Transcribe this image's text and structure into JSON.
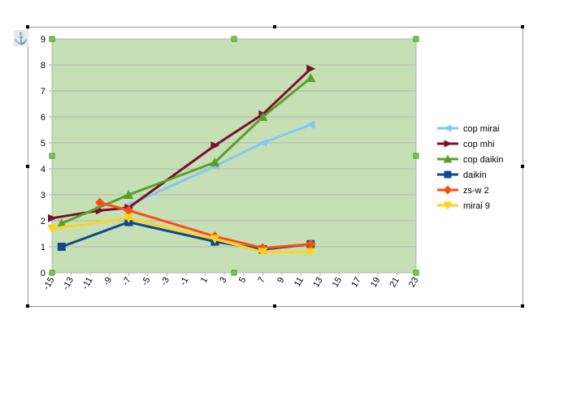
{
  "chart_data": {
    "type": "line",
    "title": "",
    "xlabel": "",
    "ylabel": "",
    "xlim": [
      -15,
      23
    ],
    "ylim": [
      0,
      9
    ],
    "x_ticks": [
      "-15",
      "-13",
      "-11",
      "-9",
      "-7",
      "-5",
      "-3",
      "-1",
      "1",
      "3",
      "5",
      "7",
      "9",
      "11",
      "13",
      "15",
      "17",
      "19",
      "21",
      "23"
    ],
    "y_ticks": [
      "0",
      "1",
      "2",
      "3",
      "4",
      "5",
      "6",
      "7",
      "8",
      "9"
    ],
    "grid": "horizontal",
    "legend_position": "right",
    "plot_background": "#c5e0b4",
    "series": [
      {
        "name": "cop mirai",
        "color": "#86c6f4",
        "marker": "arrow-left",
        "points": [
          [
            -7,
            2.6
          ],
          [
            2,
            4.1
          ],
          [
            7,
            5.0
          ],
          [
            12,
            5.7
          ]
        ]
      },
      {
        "name": "cop mhi",
        "color": "#7a0f2a",
        "marker": "arrow-right",
        "points": [
          [
            -15,
            2.1
          ],
          [
            -10,
            2.4
          ],
          [
            -7,
            2.5
          ],
          [
            2,
            4.9
          ],
          [
            7,
            6.1
          ],
          [
            12,
            7.85
          ]
        ]
      },
      {
        "name": "cop daikin",
        "color": "#5c9e2c",
        "marker": "triangle-up",
        "points": [
          [
            -14,
            1.9
          ],
          [
            -7,
            3.0
          ],
          [
            2,
            4.25
          ],
          [
            7,
            6.0
          ],
          [
            12,
            7.5
          ]
        ]
      },
      {
        "name": "daikin",
        "color": "#11488c",
        "marker": "square",
        "points": [
          [
            -14,
            1.0
          ],
          [
            -7,
            1.95
          ],
          [
            2,
            1.2
          ],
          [
            7,
            0.9
          ],
          [
            12,
            1.1
          ]
        ]
      },
      {
        "name": "zs-w 2",
        "color": "#ff4c14",
        "marker": "diamond",
        "points": [
          [
            -10,
            2.7
          ],
          [
            -7,
            2.4
          ],
          [
            2,
            1.4
          ],
          [
            7,
            0.95
          ],
          [
            12,
            1.1
          ]
        ]
      },
      {
        "name": "mirai 9",
        "color": "#ffd21f",
        "marker": "triangle-down",
        "points": [
          [
            -15,
            1.7
          ],
          [
            -7,
            2.1
          ],
          [
            2,
            1.3
          ],
          [
            7,
            0.8
          ],
          [
            12,
            0.8
          ]
        ]
      }
    ]
  },
  "anchor_icon": "anchor-icon"
}
